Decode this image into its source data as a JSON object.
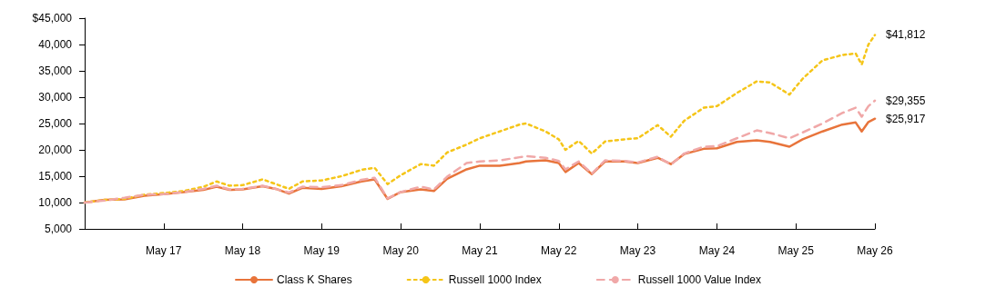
{
  "chart_data": {
    "type": "line",
    "x": [
      "2016-05",
      "2016-08",
      "2016-11",
      "2017-02",
      "2017-05",
      "2017-08",
      "2017-11",
      "2018-01",
      "2018-03",
      "2018-05",
      "2018-08",
      "2018-10",
      "2018-12",
      "2019-02",
      "2019-05",
      "2019-08",
      "2019-11",
      "2020-01",
      "2020-03",
      "2020-05",
      "2020-08",
      "2020-10",
      "2020-12",
      "2021-03",
      "2021-05",
      "2021-08",
      "2021-11",
      "2021-12",
      "2022-03",
      "2022-05",
      "2022-06",
      "2022-08",
      "2022-10",
      "2022-12",
      "2023-03",
      "2023-05",
      "2023-08",
      "2023-10",
      "2023-12",
      "2024-03",
      "2024-05",
      "2024-08",
      "2024-11",
      "2025-01",
      "2025-04",
      "2025-06",
      "2025-09",
      "2025-12",
      "2026-02",
      "2026-03",
      "2026-04",
      "2026-05"
    ],
    "series": [
      {
        "name": "Class K Shares",
        "color": "#e8743b",
        "line_style": "solid",
        "values": [
          10000,
          10500,
          10600,
          11300,
          11600,
          12000,
          12400,
          13000,
          12400,
          12500,
          13100,
          12600,
          11700,
          12800,
          12600,
          13100,
          14000,
          14400,
          10700,
          12000,
          12500,
          12200,
          14500,
          16300,
          17000,
          17000,
          17500,
          17800,
          18000,
          17500,
          15800,
          17500,
          15400,
          17800,
          17800,
          17500,
          18500,
          17300,
          19200,
          20200,
          20300,
          21500,
          21800,
          21500,
          20600,
          22000,
          23500,
          24800,
          25200,
          23500,
          25300,
          25917
        ]
      },
      {
        "name": "Russell 1000 Index",
        "color": "#f5c518",
        "line_style": "dotted",
        "values": [
          10000,
          10500,
          10700,
          11500,
          11800,
          12200,
          13000,
          14000,
          13200,
          13300,
          14400,
          13500,
          12600,
          14000,
          14200,
          15000,
          16200,
          16600,
          13500,
          15200,
          17300,
          17000,
          19500,
          21000,
          22200,
          23500,
          24800,
          25000,
          23500,
          22000,
          20000,
          21700,
          19300,
          21600,
          22000,
          22200,
          24700,
          22500,
          25500,
          28000,
          28300,
          30800,
          33000,
          32800,
          30500,
          33500,
          37000,
          38000,
          38300,
          36200,
          40000,
          41812
        ]
      },
      {
        "name": "Russell 1000 Value Index",
        "color": "#f0a8a8",
        "line_style": "dashed",
        "values": [
          10000,
          10400,
          10900,
          11500,
          11600,
          12000,
          12600,
          13200,
          12500,
          12600,
          13200,
          12600,
          11900,
          13000,
          12900,
          13300,
          14300,
          14700,
          10800,
          12000,
          13000,
          12500,
          14900,
          17500,
          17800,
          18000,
          18600,
          18800,
          18500,
          17900,
          16300,
          17800,
          15500,
          18000,
          17900,
          17600,
          18700,
          17200,
          19300,
          20600,
          20700,
          22200,
          23700,
          23200,
          22200,
          23300,
          25000,
          27000,
          28000,
          26300,
          28300,
          29355
        ]
      }
    ],
    "annotations": [
      {
        "text": "$25,917",
        "x": "2026-05",
        "y": 25917
      },
      {
        "text": "$41,812",
        "x": "2026-05",
        "y": 41812
      },
      {
        "text": "$29,355",
        "x": "2026-05",
        "y": 29355
      }
    ],
    "xlim": [
      "2016-05",
      "2026-05"
    ],
    "xticks": [
      {
        "value": "2017-05",
        "label": "May 17"
      },
      {
        "value": "2018-05",
        "label": "May 18"
      },
      {
        "value": "2019-05",
        "label": "May 19"
      },
      {
        "value": "2020-05",
        "label": "May 20"
      },
      {
        "value": "2021-05",
        "label": "May 21"
      },
      {
        "value": "2022-05",
        "label": "May 22"
      },
      {
        "value": "2023-05",
        "label": "May 23"
      },
      {
        "value": "2024-05",
        "label": "May 24"
      },
      {
        "value": "2025-05",
        "label": "May 25"
      },
      {
        "value": "2026-05",
        "label": "May 26"
      }
    ],
    "ylim": [
      5000,
      45000
    ],
    "yticks": [
      {
        "value": 5000,
        "label": "5,000"
      },
      {
        "value": 10000,
        "label": "10,000"
      },
      {
        "value": 15000,
        "label": "15,000"
      },
      {
        "value": 20000,
        "label": "20,000"
      },
      {
        "value": 25000,
        "label": "25,000"
      },
      {
        "value": 30000,
        "label": "30,000"
      },
      {
        "value": 35000,
        "label": "35,000"
      },
      {
        "value": 40000,
        "label": "40,000"
      },
      {
        "value": 45000,
        "label": "$45,000"
      }
    ],
    "grid": false,
    "legend": "bottom",
    "marker": "none"
  }
}
